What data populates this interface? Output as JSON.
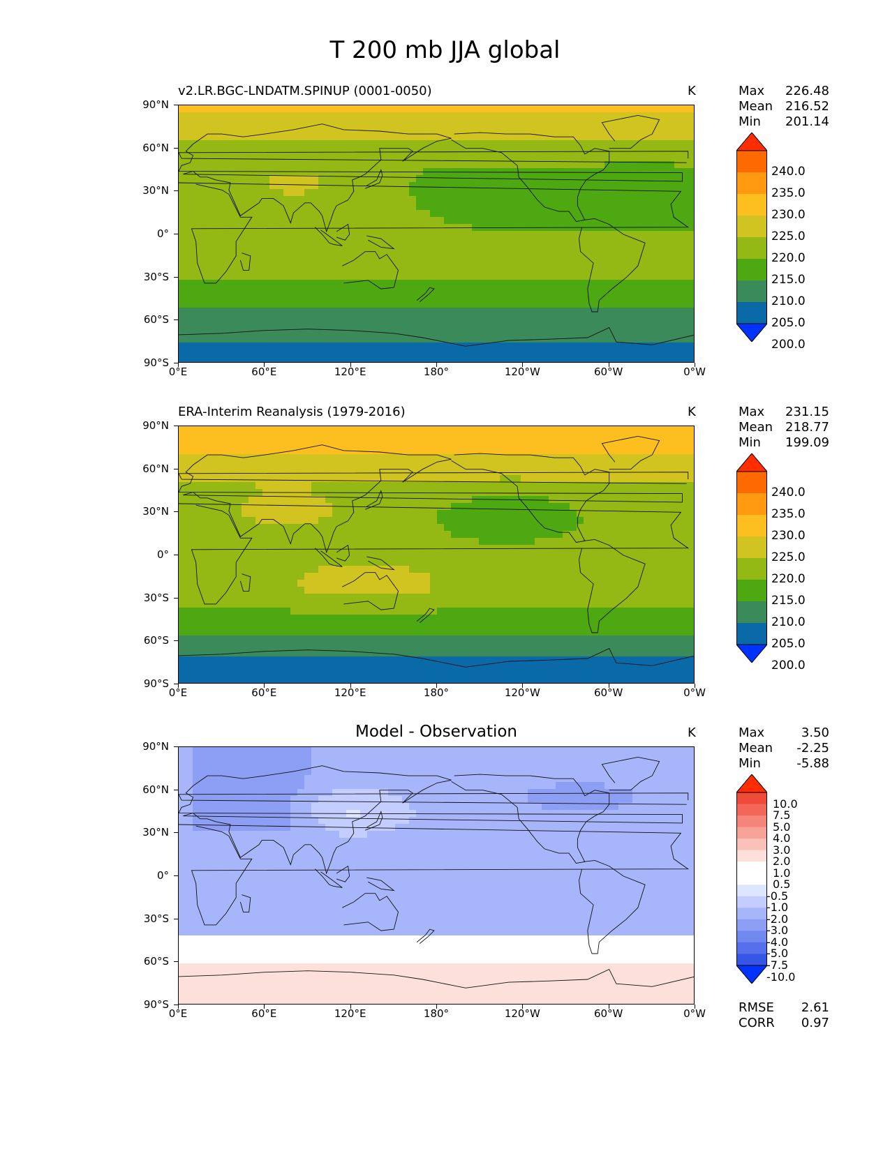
{
  "figure_title": "T 200 mb JJA global",
  "lat_labels": [
    "90°N",
    "60°N",
    "30°N",
    "0°",
    "30°S",
    "60°S",
    "90°S"
  ],
  "lon_labels": [
    "0°E",
    "60°E",
    "120°E",
    "180°",
    "120°W",
    "60°W",
    "0°W"
  ],
  "panels": [
    {
      "title": "v2.LR.BGC-LNDATM.SPINUP (0001-0050)",
      "title_style": "left",
      "units": "K",
      "stats": [
        {
          "label": "Max",
          "value": "226.48"
        },
        {
          "label": "Mean",
          "value": "216.52"
        },
        {
          "label": "Min",
          "value": "201.14"
        }
      ],
      "colorbar_labels": [
        "240.0",
        "235.0",
        "230.0",
        "225.0",
        "220.0",
        "215.0",
        "210.0",
        "205.0",
        "200.0"
      ],
      "colorbar_colors": [
        "#ff2d00",
        "#ff6a00",
        "#ff9a10",
        "#fdbf20",
        "#d2c420",
        "#94b914",
        "#4ea812",
        "#3a8a5a",
        "#0a6aa8",
        "#0033ff"
      ],
      "colorbar_extend_top": "#ff2d00",
      "colorbar_extend_bottom": "#0033ff"
    },
    {
      "title": "ERA-Interim Reanalysis (1979-2016)",
      "title_style": "left",
      "units": "K",
      "stats": [
        {
          "label": "Max",
          "value": "231.15"
        },
        {
          "label": "Mean",
          "value": "218.77"
        },
        {
          "label": "Min",
          "value": "199.09"
        }
      ],
      "colorbar_labels": [
        "240.0",
        "235.0",
        "230.0",
        "225.0",
        "220.0",
        "215.0",
        "210.0",
        "205.0",
        "200.0"
      ],
      "colorbar_colors": [
        "#ff2d00",
        "#ff6a00",
        "#ff9a10",
        "#fdbf20",
        "#d2c420",
        "#94b914",
        "#4ea812",
        "#3a8a5a",
        "#0a6aa8",
        "#0033ff"
      ],
      "colorbar_extend_top": "#ff2d00",
      "colorbar_extend_bottom": "#0033ff"
    },
    {
      "title": "Model - Observation",
      "title_style": "center",
      "units": "K",
      "stats": [
        {
          "label": "Max",
          "value": "3.50"
        },
        {
          "label": "Mean",
          "value": "-2.25"
        },
        {
          "label": "Min",
          "value": "-5.88"
        }
      ],
      "colorbar_labels": [
        "10.0",
        "7.5",
        "5.0",
        "4.0",
        "3.0",
        "2.0",
        "1.0",
        "0.5",
        "-0.5",
        "-1.0",
        "-2.0",
        "-3.0",
        "-4.0",
        "-5.0",
        "-7.5",
        "-10.0"
      ],
      "colorbar_colors": [
        "#ff2d00",
        "#f04a3a",
        "#f2675a",
        "#f5857a",
        "#f8a398",
        "#fbc1b8",
        "#fde0da",
        "#ffffff",
        "#ffffff",
        "#dfe6ff",
        "#c3ceff",
        "#a7b6fb",
        "#8d9ff5",
        "#7188ef",
        "#5570ea",
        "#3755e6",
        "#1c3fe4"
      ],
      "colorbar_extend_top": "#ff2d00",
      "colorbar_extend_bottom": "#0033ff",
      "extra_stats": [
        {
          "label": "RMSE",
          "value": "2.61"
        },
        {
          "label": "CORR",
          "value": "0.97"
        }
      ]
    }
  ]
}
